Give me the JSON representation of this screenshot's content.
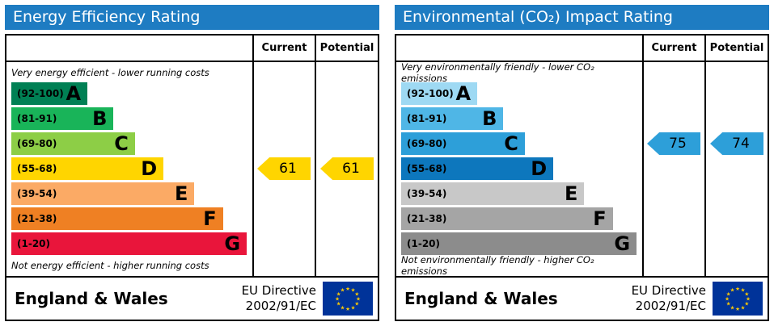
{
  "theme": {
    "header_bg": "#1e7cc2",
    "flag_bg": "#003399",
    "flag_star": "#ffcc00"
  },
  "charts": [
    {
      "title": "Energy Efficiency Rating",
      "columns": {
        "current": "Current",
        "potential": "Potential"
      },
      "top_note": "Very energy efficient - lower running costs",
      "bottom_note": "Not energy efficient - higher running costs",
      "bands": [
        {
          "range": "(92-100)",
          "letter": "A",
          "color": "#008054",
          "width_pct": 32
        },
        {
          "range": "(81-91)",
          "letter": "B",
          "color": "#19b459",
          "width_pct": 43
        },
        {
          "range": "(69-80)",
          "letter": "C",
          "color": "#8dce46",
          "width_pct": 52
        },
        {
          "range": "(55-68)",
          "letter": "D",
          "color": "#ffd500",
          "width_pct": 64
        },
        {
          "range": "(39-54)",
          "letter": "E",
          "color": "#fbaa65",
          "width_pct": 77
        },
        {
          "range": "(21-38)",
          "letter": "F",
          "color": "#ef8023",
          "width_pct": 89
        },
        {
          "range": "(1-20)",
          "letter": "G",
          "color": "#e9153b",
          "width_pct": 99
        }
      ],
      "current": {
        "value": "61",
        "band_index": 3,
        "color": "#ffd500"
      },
      "potential": {
        "value": "61",
        "band_index": 3,
        "color": "#ffd500"
      },
      "footer": {
        "region": "England & Wales",
        "directive_line1": "EU Directive",
        "directive_line2": "2002/91/EC"
      }
    },
    {
      "title": "Environmental (CO₂) Impact Rating",
      "columns": {
        "current": "Current",
        "potential": "Potential"
      },
      "top_note": "Very environmentally friendly - lower CO₂ emissions",
      "bottom_note": "Not environmentally friendly - higher CO₂ emissions",
      "bands": [
        {
          "range": "(92-100)",
          "letter": "A",
          "color": "#9ed9f3",
          "width_pct": 32
        },
        {
          "range": "(81-91)",
          "letter": "B",
          "color": "#4fb6e6",
          "width_pct": 43
        },
        {
          "range": "(69-80)",
          "letter": "C",
          "color": "#2d9fd9",
          "width_pct": 52
        },
        {
          "range": "(55-68)",
          "letter": "D",
          "color": "#0d77bd",
          "width_pct": 64
        },
        {
          "range": "(39-54)",
          "letter": "E",
          "color": "#c8c8c8",
          "width_pct": 77
        },
        {
          "range": "(21-38)",
          "letter": "F",
          "color": "#a5a5a5",
          "width_pct": 89
        },
        {
          "range": "(1-20)",
          "letter": "G",
          "color": "#8c8c8c",
          "width_pct": 99
        }
      ],
      "current": {
        "value": "75",
        "band_index": 2,
        "color": "#2d9fd9"
      },
      "potential": {
        "value": "74",
        "band_index": 2,
        "color": "#2d9fd9"
      },
      "footer": {
        "region": "England & Wales",
        "directive_line1": "EU Directive",
        "directive_line2": "2002/91/EC"
      }
    }
  ],
  "chart_data": [
    {
      "type": "bar",
      "title": "Energy Efficiency Rating",
      "categories": [
        "A (92-100)",
        "B (81-91)",
        "C (69-80)",
        "D (55-68)",
        "E (39-54)",
        "F (21-38)",
        "G (1-20)"
      ],
      "series": [
        {
          "name": "Current",
          "value": 61,
          "band": "D"
        },
        {
          "name": "Potential",
          "value": 61,
          "band": "D"
        }
      ],
      "scale_min": 1,
      "scale_max": 100,
      "annotations": [
        "Very energy efficient - lower running costs",
        "Not energy efficient - higher running costs"
      ],
      "footer": "England & Wales — EU Directive 2002/91/EC"
    },
    {
      "type": "bar",
      "title": "Environmental (CO₂) Impact Rating",
      "categories": [
        "A (92-100)",
        "B (81-91)",
        "C (69-80)",
        "D (55-68)",
        "E (39-54)",
        "F (21-38)",
        "G (1-20)"
      ],
      "series": [
        {
          "name": "Current",
          "value": 75,
          "band": "C"
        },
        {
          "name": "Potential",
          "value": 74,
          "band": "C"
        }
      ],
      "scale_min": 1,
      "scale_max": 100,
      "annotations": [
        "Very environmentally friendly - lower CO₂ emissions",
        "Not environmentally friendly - higher CO₂ emissions"
      ],
      "footer": "England & Wales — EU Directive 2002/91/EC"
    }
  ]
}
